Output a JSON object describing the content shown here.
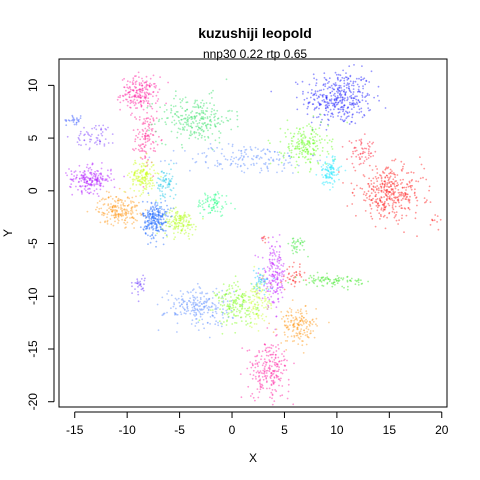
{
  "chart_data": {
    "type": "scatter",
    "title": "kuzushiji leopold",
    "subtitle": "nnp30 0.22 rtp 0.65",
    "xlabel": "X",
    "ylabel": "Y",
    "xlim": [
      -16.5,
      20.5
    ],
    "ylim": [
      -20.5,
      12.5
    ],
    "x_ticks": [
      -15,
      -10,
      -5,
      0,
      5,
      10,
      15,
      20
    ],
    "y_ticks": [
      -20,
      -15,
      -10,
      -5,
      0,
      5,
      10
    ],
    "grid": false,
    "legend": "none",
    "clusters": [
      {
        "color": "#1a1aff",
        "cx": 10.2,
        "cy": 8.8,
        "sx": 1.6,
        "sy": 1.3,
        "n": 380
      },
      {
        "color": "#ff1aa0",
        "cx": -8.8,
        "cy": 9.2,
        "sx": 0.9,
        "sy": 0.8,
        "n": 200
      },
      {
        "color": "#ff1a8c",
        "cx": -8.2,
        "cy": 5.0,
        "sx": 0.5,
        "sy": 1.2,
        "n": 110
      },
      {
        "color": "#33e066",
        "cx": -3.5,
        "cy": 6.8,
        "sx": 1.8,
        "sy": 1.1,
        "n": 260
      },
      {
        "color": "#5a8cff",
        "cx": 1.5,
        "cy": 3.0,
        "sx": 3.0,
        "sy": 0.7,
        "n": 150
      },
      {
        "color": "#7a3cff",
        "cx": -13.0,
        "cy": 5.2,
        "sx": 1.0,
        "sy": 0.6,
        "n": 60
      },
      {
        "color": "#3355ff",
        "cx": -15.0,
        "cy": 6.7,
        "sx": 0.4,
        "sy": 0.2,
        "n": 25
      },
      {
        "color": "#b21aff",
        "cx": -13.5,
        "cy": 1.1,
        "sx": 1.0,
        "sy": 0.6,
        "n": 200
      },
      {
        "color": "#ccff1a",
        "cx": -8.5,
        "cy": 1.4,
        "sx": 0.6,
        "sy": 0.8,
        "n": 160
      },
      {
        "color": "#1ac6e6",
        "cx": -6.3,
        "cy": 0.6,
        "sx": 0.5,
        "sy": 0.8,
        "n": 70
      },
      {
        "color": "#ff9a1a",
        "cx": -10.8,
        "cy": -1.8,
        "sx": 1.0,
        "sy": 0.7,
        "n": 200
      },
      {
        "color": "#1a66ff",
        "cx": -7.3,
        "cy": -2.7,
        "sx": 0.6,
        "sy": 0.9,
        "n": 240
      },
      {
        "color": "#b3ff1a",
        "cx": -5.0,
        "cy": -3.0,
        "sx": 0.8,
        "sy": 0.6,
        "n": 140
      },
      {
        "color": "#1aff80",
        "cx": -1.8,
        "cy": -1.2,
        "sx": 0.8,
        "sy": 0.6,
        "n": 80
      },
      {
        "color": "#66ff1a",
        "cx": 7.0,
        "cy": 4.3,
        "sx": 1.1,
        "sy": 1.0,
        "n": 200
      },
      {
        "color": "#1ae6ff",
        "cx": 9.3,
        "cy": 1.8,
        "sx": 0.5,
        "sy": 0.7,
        "n": 100
      },
      {
        "color": "#ff1a1a",
        "cx": 15.0,
        "cy": -0.2,
        "sx": 1.6,
        "sy": 1.2,
        "n": 380
      },
      {
        "color": "#ff1a33",
        "cx": 12.4,
        "cy": 3.6,
        "sx": 0.7,
        "sy": 0.6,
        "n": 60
      },
      {
        "color": "#bf1aff",
        "cx": 4.0,
        "cy": -8.0,
        "sx": 0.6,
        "sy": 1.5,
        "n": 180
      },
      {
        "color": "#ff1a1a",
        "cx": 6.0,
        "cy": -8.2,
        "sx": 0.4,
        "sy": 0.5,
        "n": 40
      },
      {
        "color": "#33e61a",
        "cx": 9.5,
        "cy": -8.5,
        "sx": 1.5,
        "sy": 0.25,
        "n": 90
      },
      {
        "color": "#33e633",
        "cx": 6.2,
        "cy": -5.2,
        "sx": 0.4,
        "sy": 0.5,
        "n": 35
      },
      {
        "color": "#6633ff",
        "cx": -8.8,
        "cy": -8.9,
        "sx": 0.3,
        "sy": 0.5,
        "n": 30
      },
      {
        "color": "#5a8cff",
        "cx": -3.2,
        "cy": -11.0,
        "sx": 1.6,
        "sy": 0.9,
        "n": 220
      },
      {
        "color": "#80ff1a",
        "cx": 0.5,
        "cy": -10.8,
        "sx": 1.0,
        "sy": 1.0,
        "n": 180
      },
      {
        "color": "#ccff33",
        "cx": 2.5,
        "cy": -10.5,
        "sx": 0.6,
        "sy": 1.2,
        "n": 100
      },
      {
        "color": "#1ac6ff",
        "cx": 2.8,
        "cy": -8.6,
        "sx": 0.4,
        "sy": 0.5,
        "n": 40
      },
      {
        "color": "#ff9a1a",
        "cx": 6.3,
        "cy": -12.8,
        "sx": 0.9,
        "sy": 0.9,
        "n": 160
      },
      {
        "color": "#ff1aa0",
        "cx": 3.5,
        "cy": -17.0,
        "sx": 1.0,
        "sy": 1.3,
        "n": 220
      },
      {
        "color": "#ff1a1a",
        "cx": 3.2,
        "cy": -4.4,
        "sx": 0.2,
        "sy": 0.2,
        "n": 8
      },
      {
        "color": "#ff1a1a",
        "cx": 19.2,
        "cy": -2.8,
        "sx": 0.3,
        "sy": 0.3,
        "n": 10
      }
    ]
  }
}
